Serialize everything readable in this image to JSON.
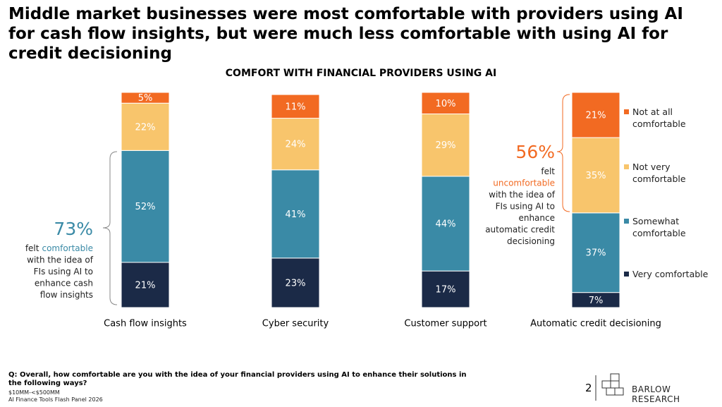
{
  "header": {
    "title": "Middle market businesses were most comfortable with providers using AI for cash flow insights, but were much less comfortable with using AI for credit decisioning"
  },
  "chart_data": {
    "type": "stacked-bar",
    "title": "COMFORT WITH FINANCIAL PROVIDERS USING AI",
    "categories": [
      "Cash flow insights",
      "Cyber security",
      "Customer support",
      "Automatic credit decisioning"
    ],
    "series": [
      {
        "name": "Very comfortable",
        "color": "#1b2a47",
        "values": [
          21,
          23,
          17,
          7
        ],
        "value_labels": [
          "21%",
          "23%",
          "17%",
          "7%"
        ]
      },
      {
        "name": "Somewhat comfortable",
        "color": "#3a8aa6",
        "values": [
          52,
          41,
          44,
          37
        ],
        "value_labels": [
          "52%",
          "41%",
          "44%",
          "37%"
        ]
      },
      {
        "name": "Not very comfortable",
        "color": "#f8c56c",
        "values": [
          22,
          24,
          29,
          35
        ],
        "value_labels": [
          "22%",
          "24%",
          "29%",
          "35%"
        ]
      },
      {
        "name": "Not at all comfortable",
        "color": "#f26a22",
        "values": [
          5,
          11,
          10,
          21
        ],
        "value_labels": [
          "5%",
          "11%",
          "10%",
          "21%"
        ]
      }
    ],
    "legend": "right",
    "annotations": [
      {
        "text": "73%",
        "color": "#3a8aa6",
        "lines": [
          [
            "felt",
            "comfortable"
          ],
          [
            "with the idea of"
          ],
          [
            "FIs using AI to"
          ],
          [
            "enhance cash"
          ],
          [
            "flow insights"
          ]
        ]
      },
      {
        "text": "56%",
        "color": "#f26a22",
        "lines": [
          [
            "felt"
          ],
          [
            "uncomfortable"
          ],
          [
            "with the idea of"
          ],
          [
            "FIs using AI to"
          ],
          [
            "enhance"
          ],
          [
            "automatic credit"
          ],
          [
            "decisioning"
          ]
        ]
      }
    ]
  },
  "footer": {
    "question": "Q: Overall, how comfortable are you with the idea of your financial providers using AI to enhance their solutions in the following ways?",
    "segment": "$10MM-<$500MM",
    "source": "AI Finance Tools Flash Panel 2026",
    "page": "2",
    "brand": "BARLOW RESEARCH"
  }
}
